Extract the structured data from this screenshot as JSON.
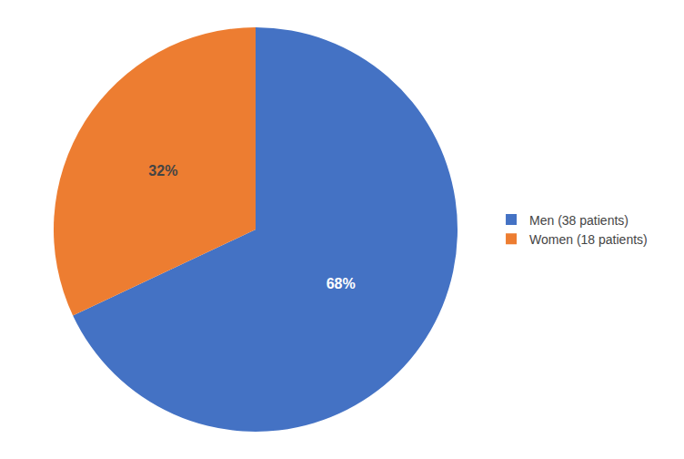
{
  "chart_data": {
    "type": "pie",
    "categories": [
      "Men (38 patients)",
      "Women (18 patients)"
    ],
    "values": [
      68,
      32
    ],
    "value_labels": [
      "68%",
      "32%"
    ],
    "colors": [
      "#4472C4",
      "#ED7D31"
    ],
    "data_labels": true,
    "legend": "right"
  }
}
